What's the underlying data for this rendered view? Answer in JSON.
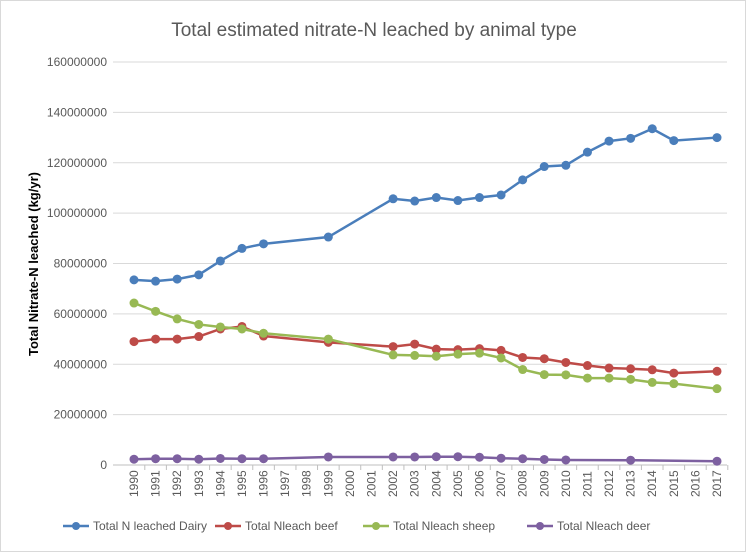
{
  "chart_data": {
    "type": "line",
    "title": "Total estimated nitrate-N leached by animal type",
    "xlabel": "",
    "ylabel": "Total Nitrate-N leached (kg/yr)",
    "ylim": [
      0,
      160000000
    ],
    "yticks": [
      "0",
      "20000000",
      "40000000",
      "60000000",
      "80000000",
      "100000000",
      "120000000",
      "140000000",
      "160000000"
    ],
    "grid": true,
    "legend": "bottom",
    "categories": [
      "1990",
      "1991",
      "1992",
      "1993",
      "1994",
      "1995",
      "1996",
      "1997",
      "1998",
      "1999",
      "2000",
      "2001",
      "2002",
      "2003",
      "2004",
      "2005",
      "2006",
      "2007",
      "2008",
      "2009",
      "2010",
      "2011",
      "2012",
      "2013",
      "2014",
      "2015",
      "2016",
      "2017"
    ],
    "series": [
      {
        "name": "Total N leached Dairy",
        "color": "#4a7ebb",
        "values": [
          73500000,
          73000000,
          73800000,
          75500000,
          81000000,
          86000000,
          87800000,
          null,
          null,
          90500000,
          null,
          null,
          105700000,
          104800000,
          106200000,
          105000000,
          106200000,
          107200000,
          113200000,
          118500000,
          119000000,
          124200000,
          128600000,
          129700000,
          133500000,
          128800000,
          null,
          130000000
        ]
      },
      {
        "name": "Total Nleach beef",
        "color": "#be4b48",
        "values": [
          49000000,
          50000000,
          50000000,
          51000000,
          54000000,
          55000000,
          51200000,
          null,
          null,
          48700000,
          null,
          null,
          47000000,
          48000000,
          46000000,
          45800000,
          46200000,
          45500000,
          42700000,
          42200000,
          40700000,
          39500000,
          38500000,
          38200000,
          37800000,
          36500000,
          null,
          37200000
        ]
      },
      {
        "name": "Total Nleach sheep",
        "color": "#98b954",
        "values": [
          64300000,
          61000000,
          58000000,
          55800000,
          54800000,
          54000000,
          52300000,
          null,
          null,
          50000000,
          null,
          null,
          43700000,
          43500000,
          43200000,
          44000000,
          44400000,
          42500000,
          37900000,
          35900000,
          35800000,
          34500000,
          34500000,
          34000000,
          32800000,
          32300000,
          null,
          30300000
        ]
      },
      {
        "name": "Total Nleach deer",
        "color": "#7d60a0",
        "values": [
          2300000,
          2500000,
          2500000,
          2300000,
          2600000,
          2500000,
          2500000,
          null,
          null,
          3200000,
          null,
          null,
          3200000,
          3200000,
          3300000,
          3300000,
          3100000,
          2700000,
          2500000,
          2200000,
          2000000,
          null,
          null,
          1900000,
          null,
          null,
          null,
          1500000
        ]
      }
    ]
  }
}
